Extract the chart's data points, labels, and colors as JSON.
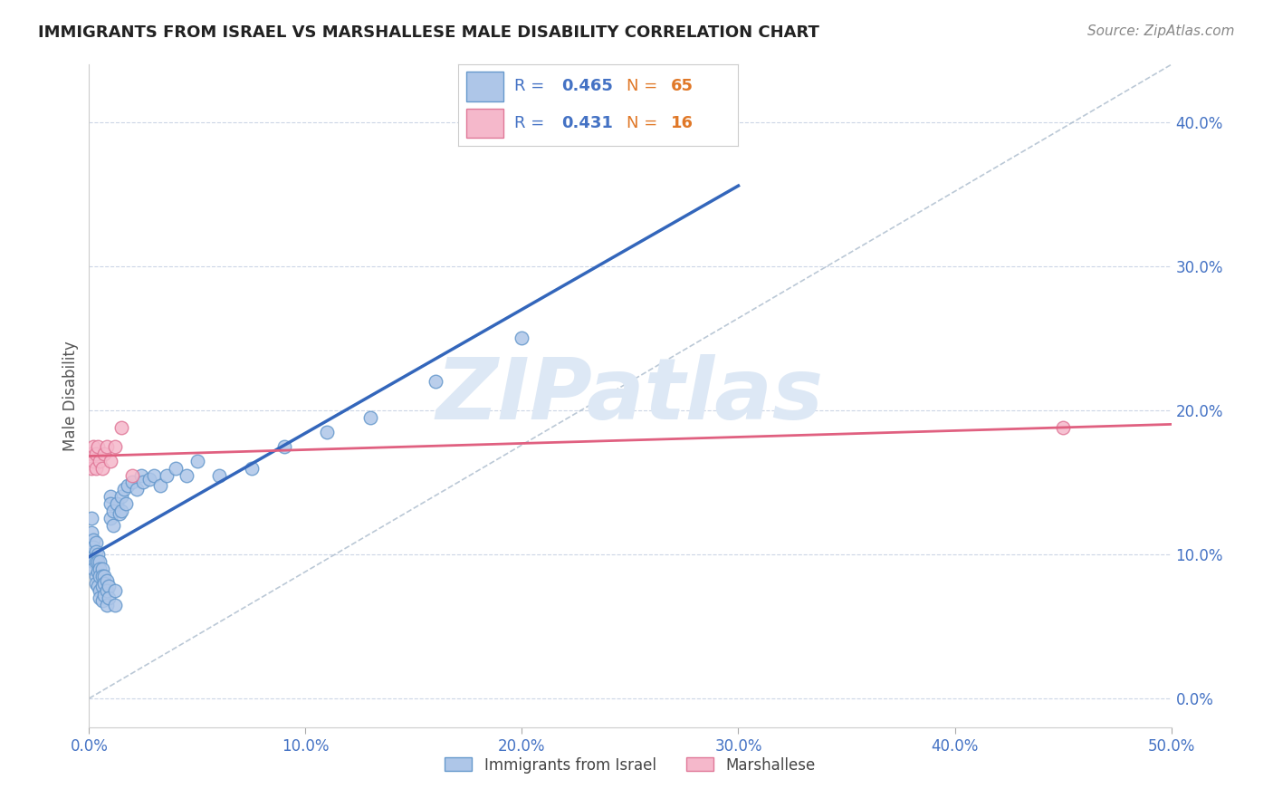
{
  "title": "IMMIGRANTS FROM ISRAEL VS MARSHALLESE MALE DISABILITY CORRELATION CHART",
  "source": "Source: ZipAtlas.com",
  "ylabel": "Male Disability",
  "xlim": [
    0.0,
    0.5
  ],
  "ylim": [
    -0.02,
    0.44
  ],
  "xticks": [
    0.0,
    0.1,
    0.2,
    0.3,
    0.4,
    0.5
  ],
  "yticks": [
    0.0,
    0.1,
    0.2,
    0.3,
    0.4
  ],
  "israel_color": "#aec6e8",
  "israel_edge_color": "#6699cc",
  "marsh_color": "#f5b8cb",
  "marsh_edge_color": "#e07898",
  "israel_line_color": "#3366bb",
  "marsh_line_color": "#e06080",
  "ref_line_color": "#aabbcc",
  "watermark_color": "#dde8f5",
  "legend_r_color": "#4472c4",
  "legend_n_color": "#e07828",
  "israel_r": "0.465",
  "israel_n": "65",
  "marsh_r": "0.431",
  "marsh_n": "16",
  "israel_x": [
    0.001,
    0.001,
    0.001,
    0.002,
    0.002,
    0.002,
    0.002,
    0.003,
    0.003,
    0.003,
    0.003,
    0.003,
    0.004,
    0.004,
    0.004,
    0.004,
    0.005,
    0.005,
    0.005,
    0.005,
    0.005,
    0.006,
    0.006,
    0.006,
    0.006,
    0.007,
    0.007,
    0.007,
    0.008,
    0.008,
    0.008,
    0.009,
    0.009,
    0.01,
    0.01,
    0.01,
    0.011,
    0.011,
    0.012,
    0.012,
    0.013,
    0.014,
    0.015,
    0.015,
    0.016,
    0.017,
    0.018,
    0.02,
    0.022,
    0.024,
    0.025,
    0.028,
    0.03,
    0.033,
    0.036,
    0.04,
    0.045,
    0.05,
    0.06,
    0.075,
    0.09,
    0.11,
    0.13,
    0.16,
    0.2
  ],
  "israel_y": [
    0.125,
    0.115,
    0.1,
    0.11,
    0.105,
    0.095,
    0.09,
    0.108,
    0.102,
    0.095,
    0.085,
    0.08,
    0.1,
    0.095,
    0.088,
    0.078,
    0.095,
    0.09,
    0.085,
    0.075,
    0.07,
    0.09,
    0.085,
    0.078,
    0.068,
    0.085,
    0.08,
    0.072,
    0.082,
    0.075,
    0.065,
    0.078,
    0.07,
    0.14,
    0.135,
    0.125,
    0.13,
    0.12,
    0.075,
    0.065,
    0.135,
    0.128,
    0.14,
    0.13,
    0.145,
    0.135,
    0.148,
    0.15,
    0.145,
    0.155,
    0.15,
    0.152,
    0.155,
    0.148,
    0.155,
    0.16,
    0.155,
    0.165,
    0.155,
    0.16,
    0.175,
    0.185,
    0.195,
    0.22,
    0.25
  ],
  "marsh_x": [
    0.001,
    0.001,
    0.002,
    0.002,
    0.003,
    0.003,
    0.004,
    0.005,
    0.006,
    0.007,
    0.008,
    0.01,
    0.012,
    0.015,
    0.02,
    0.45
  ],
  "marsh_y": [
    0.17,
    0.16,
    0.175,
    0.165,
    0.17,
    0.16,
    0.175,
    0.165,
    0.16,
    0.17,
    0.175,
    0.165,
    0.175,
    0.188,
    0.155,
    0.188
  ]
}
